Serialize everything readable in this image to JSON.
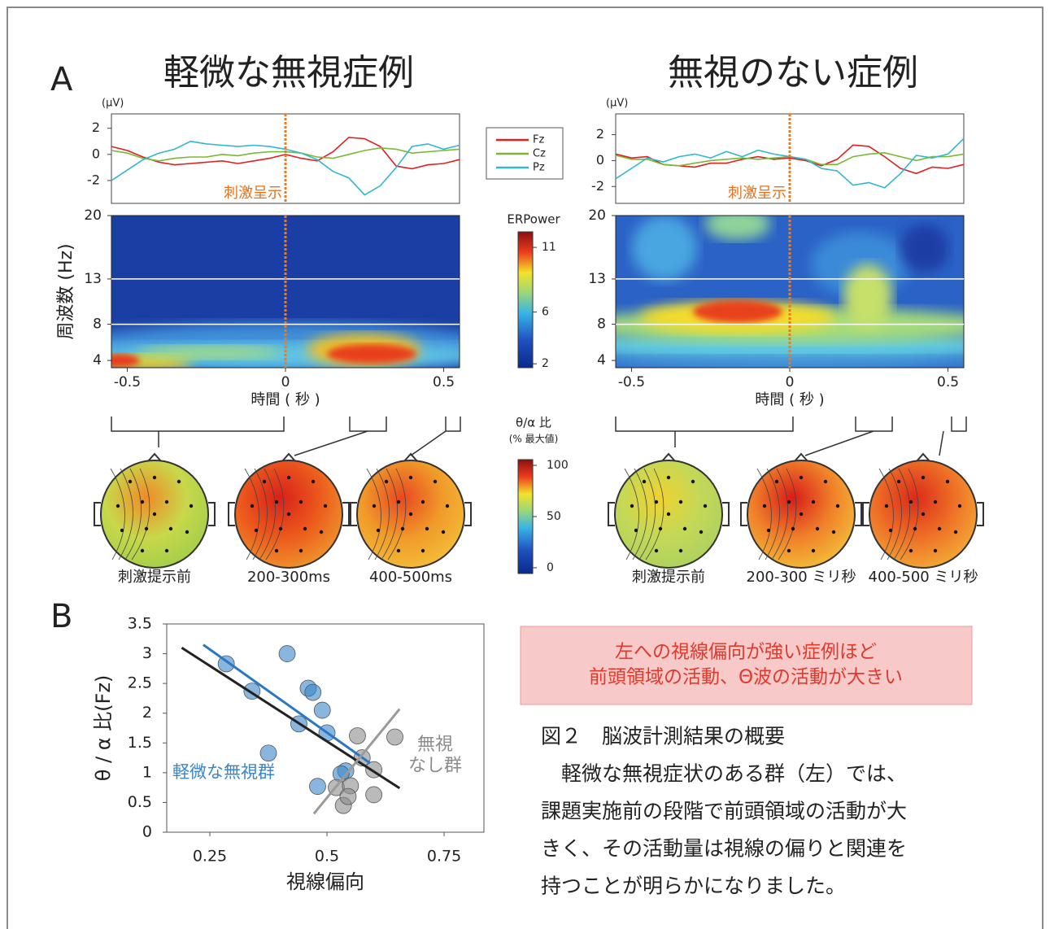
{
  "panel_labels": [
    "A",
    "B"
  ],
  "chart_data": [
    {
      "type": "line",
      "title": "軽微な無視症例",
      "y_unit": "(μV)",
      "annotation": "刺激呈示",
      "event_x": 0,
      "x": [
        -0.55,
        -0.5,
        -0.45,
        -0.4,
        -0.35,
        -0.3,
        -0.25,
        -0.2,
        -0.15,
        -0.1,
        -0.05,
        0,
        0.05,
        0.1,
        0.15,
        0.2,
        0.25,
        0.3,
        0.35,
        0.4,
        0.45,
        0.5,
        0.55
      ],
      "series": [
        {
          "name": "Fz",
          "color": "#e02020",
          "values": [
            0.6,
            0.3,
            -0.2,
            -0.6,
            -0.8,
            -0.7,
            -0.6,
            -0.5,
            -0.7,
            -0.5,
            -0.3,
            0,
            -0.3,
            -0.5,
            0.2,
            1.3,
            1.2,
            0.6,
            -0.9,
            -1.1,
            -0.8,
            -0.7,
            -0.4
          ]
        },
        {
          "name": "Cz",
          "color": "#7ab833",
          "values": [
            0.3,
            0.1,
            -0.3,
            -0.5,
            -0.3,
            -0.2,
            -0.2,
            0,
            -0.1,
            0.1,
            0.2,
            0.2,
            0.1,
            -0.2,
            -0.3,
            0,
            0.3,
            0.5,
            0.4,
            0.1,
            0.2,
            0.3,
            0.4
          ]
        },
        {
          "name": "Pz",
          "color": "#30b8d0",
          "values": [
            -2,
            -1.2,
            -0.4,
            0.1,
            0.4,
            1,
            0.8,
            0.7,
            0.6,
            0.7,
            0.6,
            0.4,
            0.1,
            -0.4,
            -1.3,
            -1.8,
            -3.1,
            -2.4,
            -1,
            0.6,
            0.8,
            0.4,
            0.7
          ]
        }
      ],
      "xlim": [
        -0.55,
        0.55
      ],
      "ylim": [
        -3.75,
        3.1
      ],
      "yticks": [
        -2,
        0,
        2
      ]
    },
    {
      "type": "heatmap",
      "ylabel": "周波数 (Hz)",
      "xlabel": "時間 ( 秒 )",
      "event_x": 0,
      "xlim": [
        -0.55,
        0.55
      ],
      "xticks": [
        -0.5,
        0,
        0.5
      ],
      "ylim": [
        3.2,
        20
      ],
      "yticks": [
        4,
        8,
        13,
        20
      ],
      "reference_lines": [
        8,
        13
      ],
      "colorbar": {
        "title": "ERPower",
        "lim": [
          1.7,
          12.2
        ],
        "ticks": [
          2,
          6,
          11
        ]
      }
    },
    {
      "type": "line",
      "title": "無視のない症例",
      "y_unit": "(μV)",
      "annotation": "刺激呈示",
      "event_x": 0,
      "x": [
        -0.55,
        -0.5,
        -0.45,
        -0.4,
        -0.35,
        -0.3,
        -0.25,
        -0.2,
        -0.15,
        -0.1,
        -0.05,
        0,
        0.05,
        0.1,
        0.15,
        0.2,
        0.25,
        0.3,
        0.35,
        0.4,
        0.45,
        0.5,
        0.55
      ],
      "series": [
        {
          "name": "Fz",
          "color": "#e02020",
          "values": [
            0.5,
            0.2,
            0.3,
            -0.3,
            -0.4,
            -0.5,
            -0.2,
            -0.2,
            0.1,
            0.3,
            0.1,
            0.2,
            0,
            -0.4,
            0.1,
            1.2,
            1.1,
            0.3,
            -0.6,
            -1,
            -0.5,
            -0.6,
            -0.3
          ]
        },
        {
          "name": "Cz",
          "color": "#7ab833",
          "values": [
            0.4,
            0.1,
            0.1,
            -0.3,
            -0.4,
            -0.2,
            0,
            0.1,
            0.2,
            0.1,
            0.2,
            0.3,
            0.1,
            -0.3,
            -0.3,
            0.3,
            0.5,
            0.6,
            0.3,
            0,
            0.3,
            0.3,
            0.5
          ]
        },
        {
          "name": "Pz",
          "color": "#30b8d0",
          "values": [
            -1.4,
            -0.6,
            0.2,
            -0.1,
            0.3,
            0.5,
            0.2,
            0.7,
            0.3,
            0.8,
            0.5,
            0.3,
            0.1,
            -0.6,
            -0.8,
            -1.9,
            -1.7,
            -2.1,
            -1,
            0.4,
            0.2,
            0.5,
            1.7
          ]
        }
      ],
      "xlim": [
        -0.55,
        0.55
      ],
      "ylim": [
        -3.3,
        3.6
      ],
      "yticks": [
        -2,
        0,
        2
      ]
    },
    {
      "type": "heatmap",
      "xlabel": "時間 ( 秒 )",
      "event_x": 0,
      "xlim": [
        -0.55,
        0.55
      ],
      "xticks": [
        -0.5,
        0,
        0.5
      ],
      "ylim": [
        3.2,
        20
      ],
      "yticks": [
        4,
        8,
        13,
        20
      ],
      "reference_lines": [
        8,
        13
      ]
    },
    {
      "type": "topomap",
      "title": "θ/α 比",
      "subtitle": "(% 最大値)",
      "left_labels": [
        "刺激提示前",
        "200-300ms",
        "400-500ms"
      ],
      "right_labels": [
        "刺激提示前",
        "200-300 ミリ秒",
        "400-500 ミリ秒"
      ],
      "colorbar_lim": [
        -5.6,
        105.6
      ],
      "colorbar_ticks": [
        0,
        50,
        100
      ]
    },
    {
      "type": "scatter",
      "ylabel": "θ / α 比(Fz)",
      "xlabel": "視線偏向",
      "xlim": [
        0.158,
        0.835
      ],
      "xticks": [
        0.25,
        0.5,
        0.75
      ],
      "ylim": [
        0,
        3.5
      ],
      "yticks": [
        0,
        0.5,
        1,
        1.5,
        2,
        2.5,
        3,
        3.5
      ],
      "series": [
        {
          "name": "軽微な無視群",
          "color": "#3a86c8",
          "x": [
            0.285,
            0.34,
            0.375,
            0.415,
            0.44,
            0.46,
            0.47,
            0.49,
            0.5,
            0.48,
            0.54,
            0.53
          ],
          "values": [
            2.83,
            2.37,
            1.33,
            3.0,
            1.82,
            2.42,
            2.35,
            2.05,
            1.67,
            0.77,
            1.03,
            0.98
          ]
        },
        {
          "name": "無視\nなし群",
          "color": "#8c8c8c",
          "x": [
            0.52,
            0.55,
            0.535,
            0.575,
            0.565,
            0.6,
            0.6,
            0.645,
            0.545
          ],
          "values": [
            0.75,
            0.78,
            0.45,
            1.25,
            1.62,
            1.05,
            0.63,
            1.6,
            0.6
          ]
        }
      ],
      "trend_lines": [
        {
          "color": "#2a78c4",
          "x": [
            0.236,
            0.592
          ],
          "values": [
            3.15,
            1.16
          ]
        },
        {
          "color": "#222222",
          "x": [
            0.19,
            0.655
          ],
          "values": [
            3.1,
            0.74
          ]
        },
        {
          "color": "#9a9a9a",
          "x": [
            0.472,
            0.655
          ],
          "values": [
            0.31,
            2.07
          ]
        }
      ]
    }
  ],
  "callout": {
    "lines": [
      "左への視線偏向が強い症例ほど",
      "前頭領域の活動、Θ波の活動が大きい"
    ]
  },
  "caption": {
    "title": "図２　脳波計測結果の概要",
    "lines": [
      "　軽微な無視症状のある群（左）では、",
      "課題実施前の段階で前頭領域の活動が大",
      "きく、その活動量は視線の偏りと関連を",
      "持つことが明らかになりました。"
    ]
  }
}
